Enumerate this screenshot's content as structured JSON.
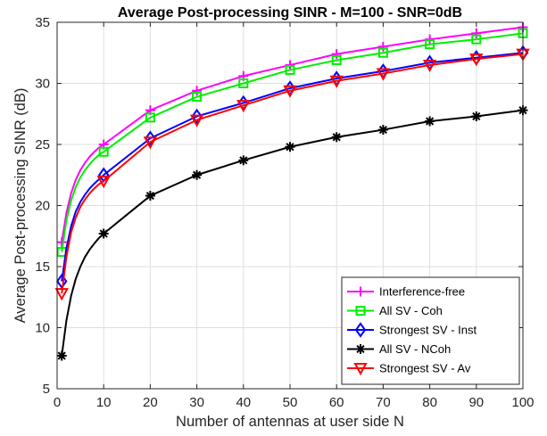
{
  "chart_data": {
    "type": "line",
    "title": "Average Post-processing SINR - M=100 - SNR=0dB",
    "xlabel": "Number of antennas at user side N",
    "ylabel": "Average Post-processing SINR (dB)",
    "xlim": [
      0,
      100
    ],
    "ylim": [
      5,
      35
    ],
    "xticks": [
      0,
      10,
      20,
      30,
      40,
      50,
      60,
      70,
      80,
      90,
      100
    ],
    "yticks": [
      5,
      10,
      15,
      20,
      25,
      30,
      35
    ],
    "grid": true,
    "legend_position": "bottom-right",
    "x": [
      1,
      2,
      3,
      4,
      5,
      6,
      7,
      8,
      9,
      10,
      20,
      30,
      40,
      50,
      60,
      70,
      80,
      90,
      100
    ],
    "marker_x": [
      1,
      10,
      20,
      30,
      40,
      50,
      60,
      70,
      80,
      90,
      100
    ],
    "series": [
      {
        "name": "Interference-free",
        "color": "#ff00ff",
        "marker": "plus",
        "values": [
          17.0,
          19.4,
          21.0,
          22.1,
          22.9,
          23.5,
          24.0,
          24.4,
          24.75,
          25.0,
          27.8,
          29.4,
          30.6,
          31.5,
          32.4,
          33.0,
          33.6,
          34.1,
          34.6
        ]
      },
      {
        "name": "All SV - Coh",
        "color": "#00ee00",
        "marker": "square",
        "values": [
          16.2,
          18.8,
          20.4,
          21.5,
          22.3,
          22.9,
          23.4,
          23.8,
          24.15,
          24.4,
          27.2,
          28.9,
          30.0,
          31.1,
          31.9,
          32.5,
          33.2,
          33.6,
          34.1
        ]
      },
      {
        "name": "Strongest SV - Inst",
        "color": "#0000ff",
        "marker": "diamond",
        "values": [
          13.8,
          16.5,
          18.3,
          19.5,
          20.3,
          20.9,
          21.4,
          21.8,
          22.15,
          22.5,
          25.5,
          27.3,
          28.4,
          29.6,
          30.4,
          31.0,
          31.7,
          32.1,
          32.5
        ]
      },
      {
        "name": "All SV - NCoh",
        "color": "#000000",
        "marker": "asterisk",
        "values": [
          7.7,
          10.6,
          12.6,
          14.0,
          15.0,
          15.8,
          16.4,
          16.9,
          17.35,
          17.7,
          20.8,
          22.5,
          23.7,
          24.8,
          25.6,
          26.2,
          26.9,
          27.3,
          27.8
        ]
      },
      {
        "name": "Strongest SV - Av",
        "color": "#ff0000",
        "marker": "triangle-down",
        "values": [
          12.8,
          15.8,
          17.8,
          19.0,
          19.9,
          20.5,
          21.0,
          21.4,
          21.75,
          22.0,
          25.2,
          27.0,
          28.2,
          29.4,
          30.2,
          30.8,
          31.5,
          32.0,
          32.4
        ]
      }
    ]
  }
}
